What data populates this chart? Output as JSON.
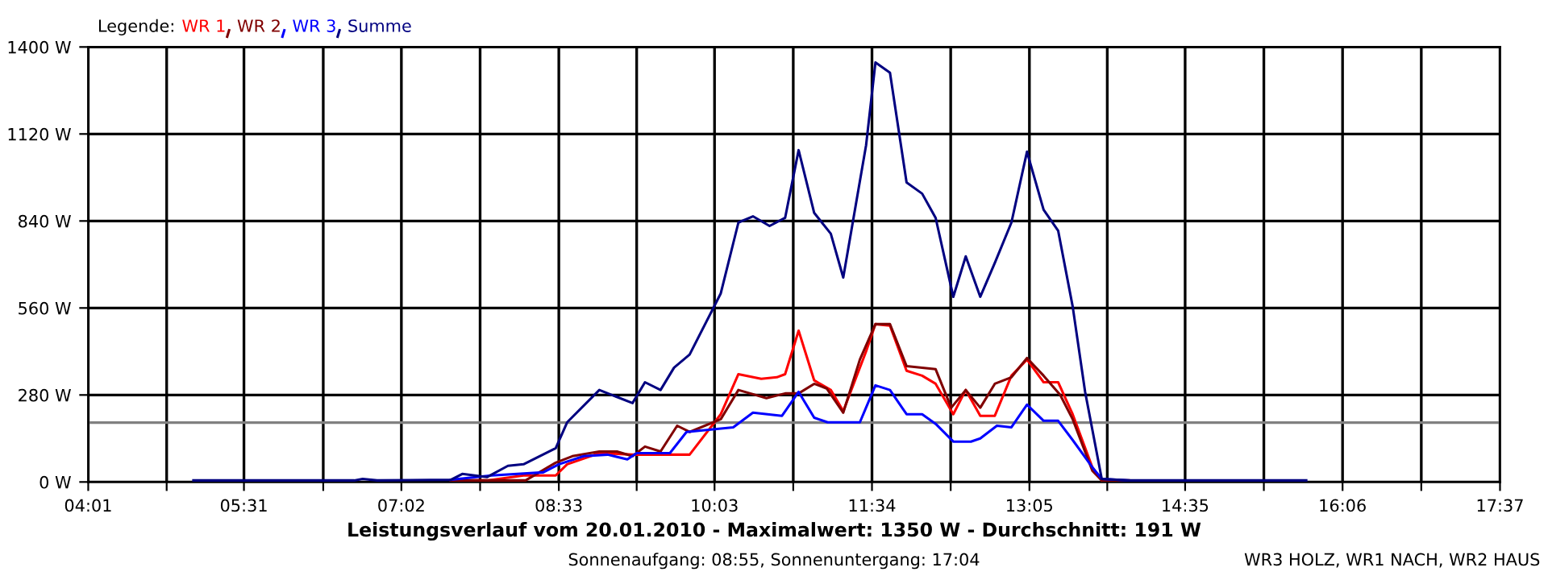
{
  "chart_data": {
    "type": "line",
    "title": "Leistungsverlauf vom 20.01.2010 - Maximalwert: 1350 W - Durchschnitt: 191 W",
    "subtitle": "Sonnenaufgang: 08:55, Sonnenuntergang: 17:04",
    "annotations": [
      "WR3 HOLZ, WR1 NACH, WR2 HAUS"
    ],
    "legend_title": "Legende:",
    "legend": "top left",
    "grid": true,
    "xlim": [
      4.0167,
      17.6167
    ],
    "xticks": [
      {
        "value": 4.0167,
        "label": "04:01"
      },
      {
        "value": 4.7722,
        "label": null
      },
      {
        "value": 5.5167,
        "label": "05:31"
      },
      {
        "value": 6.2806,
        "label": null
      },
      {
        "value": 7.0333,
        "label": "07:02"
      },
      {
        "value": 7.7917,
        "label": null
      },
      {
        "value": 8.55,
        "label": "08:33"
      },
      {
        "value": 9.3,
        "label": null
      },
      {
        "value": 10.05,
        "label": "10:03"
      },
      {
        "value": 10.8083,
        "label": null
      },
      {
        "value": 11.5667,
        "label": "11:34"
      },
      {
        "value": 12.325,
        "label": null
      },
      {
        "value": 13.0833,
        "label": "13:05"
      },
      {
        "value": 13.8333,
        "label": null
      },
      {
        "value": 14.5833,
        "label": "14:35"
      },
      {
        "value": 15.3417,
        "label": null
      },
      {
        "value": 16.1,
        "label": "16:06"
      },
      {
        "value": 16.8583,
        "label": null
      },
      {
        "value": 17.6167,
        "label": "17:37"
      }
    ],
    "ylim": [
      0,
      1400
    ],
    "yticks": [
      {
        "value": 0,
        "label": "0 W"
      },
      {
        "value": 280,
        "label": "280 W"
      },
      {
        "value": 560,
        "label": "560 W"
      },
      {
        "value": 840,
        "label": "840 W"
      },
      {
        "value": 1120,
        "label": "1120 W"
      },
      {
        "value": 1400,
        "label": "1400 W"
      }
    ],
    "ref_lines": [
      {
        "axis": "y",
        "value": 191,
        "color": "#808080"
      }
    ],
    "series": [
      {
        "name": "WR 1",
        "color": "#ff0000",
        "x": [
          7.51,
          7.86,
          8.21,
          8.52,
          8.63,
          8.94,
          9.26,
          9.53,
          9.81,
          10.11,
          10.28,
          10.5,
          10.65,
          10.73,
          10.86,
          11.01,
          11.17,
          11.29,
          11.51,
          11.6,
          11.74,
          11.9,
          12.05,
          12.18,
          12.35,
          12.47,
          12.61,
          12.75,
          12.91,
          13.06,
          13.22,
          13.36,
          13.5,
          13.69,
          13.78
        ],
        "values": [
          5,
          5,
          21,
          21,
          57,
          93,
          88,
          88,
          88,
          218,
          347,
          332,
          337,
          347,
          487,
          327,
          296,
          228,
          420,
          508,
          503,
          358,
          342,
          316,
          218,
          296,
          213,
          213,
          342,
          394,
          321,
          321,
          218,
          47,
          5
        ]
      },
      {
        "name": "WR 2",
        "color": "#800000",
        "x": [
          7.51,
          8.23,
          8.52,
          8.68,
          8.94,
          9.11,
          9.26,
          9.38,
          9.53,
          9.69,
          9.81,
          10.11,
          10.28,
          10.55,
          10.73,
          10.86,
          11.01,
          11.13,
          11.29,
          11.45,
          11.6,
          11.74,
          11.9,
          12.18,
          12.33,
          12.47,
          12.61,
          12.75,
          12.91,
          13.06,
          13.22,
          13.38,
          13.5,
          13.69,
          13.78,
          14.04
        ],
        "values": [
          5,
          5,
          62,
          83,
          98,
          98,
          83,
          114,
          98,
          181,
          161,
          202,
          296,
          270,
          285,
          285,
          316,
          301,
          223,
          394,
          508,
          508,
          373,
          363,
          239,
          296,
          239,
          316,
          337,
          399,
          342,
          280,
          202,
          36,
          5,
          5
        ]
      },
      {
        "name": "WR 3",
        "color": "#0000ff",
        "x": [
          7.51,
          7.9,
          8.4,
          8.55,
          8.79,
          9.02,
          9.21,
          9.3,
          9.62,
          9.78,
          10.23,
          10.42,
          10.7,
          10.86,
          11.01,
          11.14,
          11.45,
          11.6,
          11.74,
          11.9,
          12.05,
          12.18,
          12.35,
          12.52,
          12.61,
          12.77,
          12.91,
          13.06,
          13.22,
          13.36,
          13.5,
          13.69,
          13.78,
          14.04
        ],
        "values": [
          7,
          21,
          31,
          57,
          83,
          88,
          73,
          93,
          93,
          161,
          176,
          223,
          213,
          290,
          207,
          192,
          192,
          311,
          296,
          218,
          218,
          187,
          130,
          130,
          140,
          181,
          176,
          249,
          197,
          197,
          135,
          47,
          10,
          5
        ]
      },
      {
        "name": "Summe",
        "color": "#000080",
        "x": [
          5.03,
          6.58,
          6.66,
          6.8,
          7.51,
          7.62,
          7.86,
          8.06,
          8.21,
          8.52,
          8.63,
          8.94,
          9.26,
          9.38,
          9.53,
          9.66,
          9.81,
          10.11,
          10.28,
          10.42,
          10.58,
          10.73,
          10.86,
          11.01,
          11.17,
          11.29,
          11.51,
          11.6,
          11.74,
          11.9,
          12.05,
          12.18,
          12.35,
          12.47,
          12.61,
          12.75,
          12.91,
          13.06,
          13.22,
          13.36,
          13.5,
          13.62,
          13.78,
          14.04,
          15.75
        ],
        "values": [
          5,
          5,
          10,
          5,
          7,
          26,
          16,
          52,
          57,
          109,
          192,
          296,
          254,
          321,
          296,
          368,
          410,
          607,
          835,
          855,
          824,
          850,
          1068,
          866,
          799,
          658,
          1084,
          1350,
          1317,
          964,
          928,
          850,
          596,
          726,
          596,
          705,
          835,
          1063,
          876,
          809,
          565,
          290,
          10,
          5,
          5
        ]
      }
    ]
  }
}
